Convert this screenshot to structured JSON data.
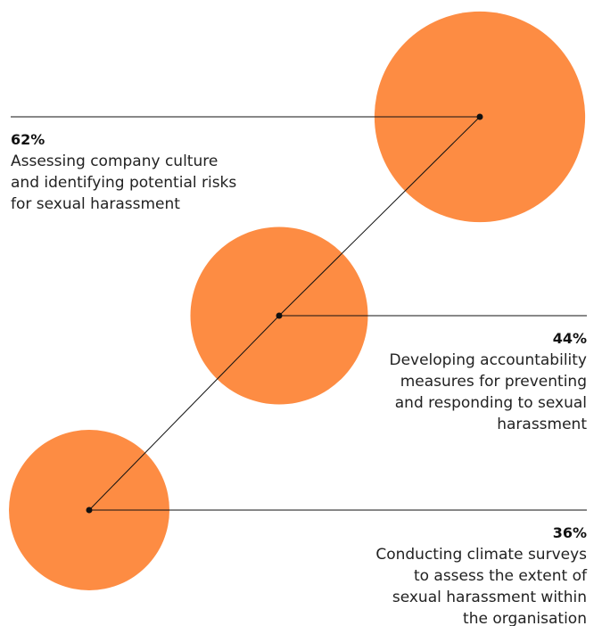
{
  "chart_data": {
    "type": "bubble",
    "values": [
      62,
      44,
      36
    ],
    "value_labels": [
      "62%",
      "44%",
      "36%"
    ],
    "categories": [
      [
        "Assessing company culture",
        "and identifying potential risks",
        "for sexual harassment"
      ],
      [
        "Developing accountability",
        "measures for preventing",
        "and responding to sexual",
        "harassment"
      ],
      [
        "Conducting climate surveys",
        "to assess the extent of",
        "sexual harassment within",
        "the organisation"
      ]
    ],
    "color": "#fd8c43"
  }
}
